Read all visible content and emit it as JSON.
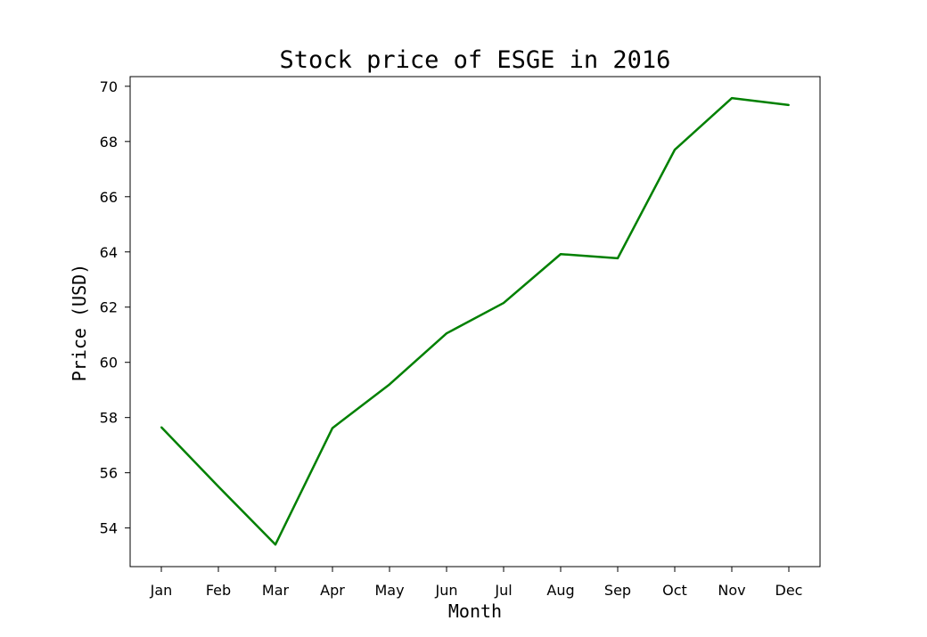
{
  "chart_data": {
    "type": "line",
    "title": "Stock price of ESGE in 2016",
    "xlabel": "Month",
    "ylabel": "Price (USD)",
    "categories": [
      "Jan",
      "Feb",
      "Mar",
      "Apr",
      "May",
      "Jun",
      "Jul",
      "Aug",
      "Sep",
      "Oct",
      "Nov",
      "Dec"
    ],
    "series": [
      {
        "values": [
          57.65,
          55.5,
          53.4,
          57.62,
          59.2,
          61.05,
          62.15,
          63.92,
          63.77,
          67.7,
          69.57,
          69.32
        ],
        "color": "#008000"
      }
    ],
    "yticks": [
      54,
      56,
      58,
      60,
      62,
      64,
      66,
      68,
      70
    ],
    "ylim": [
      52.6,
      70.35
    ],
    "grid": false,
    "legend": "none"
  }
}
